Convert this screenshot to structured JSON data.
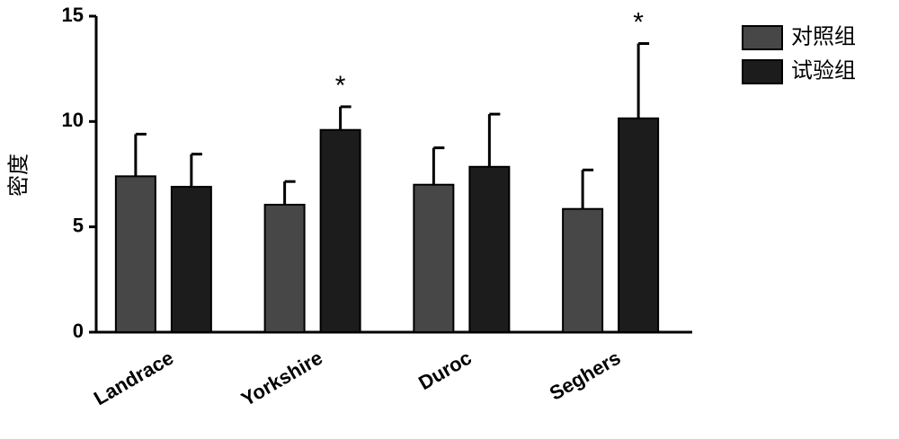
{
  "chart_data": {
    "type": "bar",
    "ylabel": "密度",
    "categories": [
      "Landrace",
      "Yorkshire",
      "Duroc",
      "Seghers"
    ],
    "series": [
      {
        "name": "对照组",
        "color": "#474747",
        "values": [
          7.4,
          6.05,
          7.0,
          5.85
        ],
        "errors": [
          2.0,
          1.1,
          1.75,
          1.85
        ]
      },
      {
        "name": "试验组",
        "color": "#1c1c1c",
        "values": [
          6.9,
          9.6,
          7.85,
          10.15
        ],
        "errors": [
          1.55,
          1.1,
          2.5,
          3.55
        ],
        "labels": [
          null,
          "*",
          null,
          "*"
        ]
      }
    ],
    "ylim": [
      0,
      15
    ],
    "yticks": [
      0,
      5,
      10,
      15
    ],
    "grid": false,
    "legend": "top-right"
  }
}
